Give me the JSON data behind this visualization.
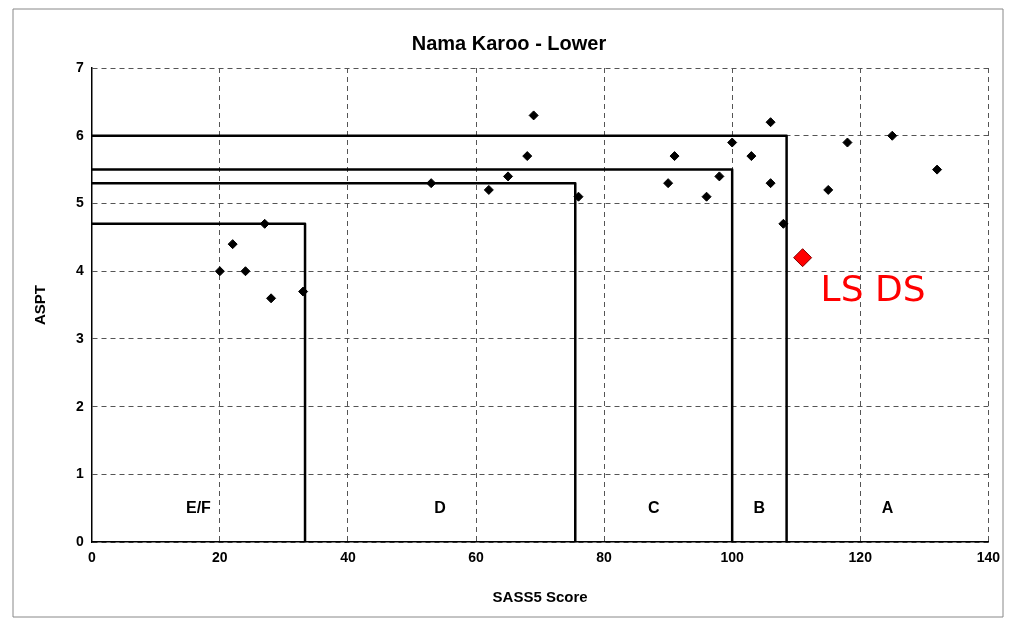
{
  "chart_data": {
    "type": "scatter",
    "title": "Nama Karoo - Lower",
    "xlabel": "SASS5 Score",
    "ylabel": "ASPT",
    "xlim": [
      0,
      140
    ],
    "xticks": [
      0,
      20,
      40,
      60,
      80,
      100,
      120,
      140
    ],
    "ylim": [
      0,
      7
    ],
    "yticks": [
      0,
      1,
      2,
      3,
      4,
      5,
      6,
      7
    ],
    "grid": true,
    "legend": false,
    "marker": "diamond",
    "series": [
      {
        "color": "#000000",
        "x": [
          20,
          22,
          24,
          27,
          28,
          33,
          53,
          62,
          65,
          68,
          69,
          76,
          90,
          91,
          96,
          98,
          100,
          103,
          106,
          106,
          108,
          115,
          118,
          125,
          132
        ],
        "values": [
          4.0,
          4.4,
          4.0,
          4.7,
          3.6,
          3.7,
          5.3,
          5.2,
          5.4,
          5.7,
          6.3,
          5.1,
          5.3,
          5.7,
          5.1,
          5.4,
          5.9,
          5.7,
          6.2,
          5.3,
          4.7,
          5.2,
          5.9,
          6.0,
          5.5
        ]
      },
      {
        "type": "line",
        "color": "#000000",
        "marker": "none",
        "x": [
          0,
          33.3,
          33.3
        ],
        "values": [
          4.7,
          4.7,
          0
        ]
      },
      {
        "type": "line",
        "color": "#000000",
        "marker": "none",
        "x": [
          0,
          75.5,
          75.5
        ],
        "values": [
          5.3,
          5.3,
          0
        ]
      },
      {
        "type": "line",
        "color": "#000000",
        "marker": "none",
        "x": [
          0,
          100,
          100
        ],
        "values": [
          5.5,
          5.5,
          0
        ]
      },
      {
        "type": "line",
        "color": "#000000",
        "marker": "none",
        "x": [
          0,
          108.5,
          108.5
        ],
        "values": [
          6,
          6,
          0
        ]
      },
      {
        "type": "scatter",
        "name": "LS DS",
        "color": "#ff0000",
        "x": [
          111
        ],
        "values": [
          4.2
        ]
      }
    ],
    "annotations": [
      "E/F",
      "D",
      "C",
      "B",
      "A"
    ]
  }
}
